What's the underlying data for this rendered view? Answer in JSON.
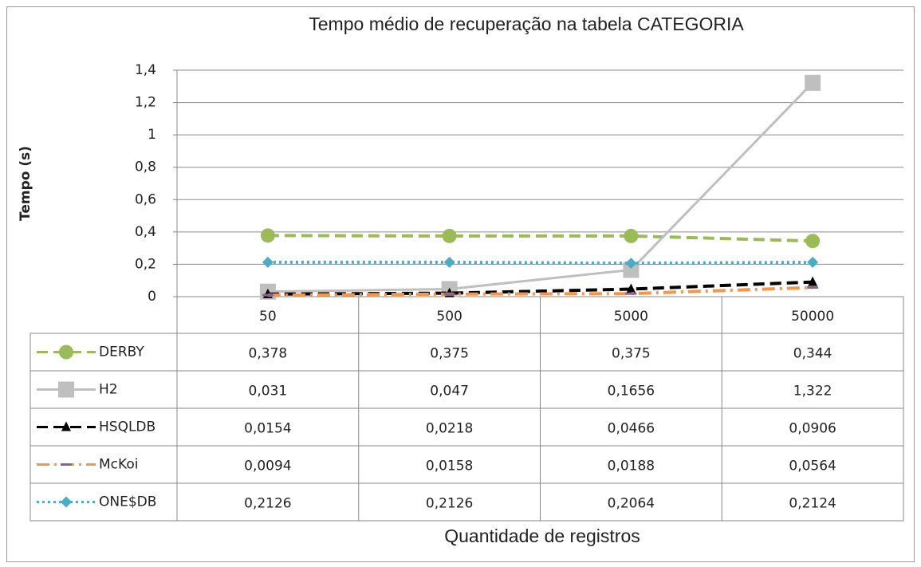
{
  "chart_data": {
    "type": "line",
    "title": "Tempo médio de recuperação na tabela CATEGORIA",
    "ylabel": "Tempo (s)",
    "xlabel": "Quantidade de registros",
    "categories": [
      "50",
      "500",
      "5000",
      "50000"
    ],
    "ylim": [
      0,
      1.4
    ],
    "yticks": [
      0,
      {
        "value": 0.2,
        "label": "0,2"
      },
      {
        "value": 0.4,
        "label": "0,4"
      },
      {
        "value": 0.6,
        "label": "0,6"
      },
      {
        "value": 0.8,
        "label": "0,8"
      },
      1,
      {
        "value": 1.2,
        "label": "1,2"
      },
      {
        "value": 1.4,
        "label": "1,4"
      }
    ],
    "grid": true,
    "series": [
      {
        "name": "DERBY",
        "color": "#9bbb59",
        "line_style": "dashed",
        "marker": "circle",
        "values": [
          0.378,
          0.375,
          0.375,
          0.344
        ],
        "value_labels": [
          "0,378",
          "0,375",
          "0,375",
          "0,344"
        ]
      },
      {
        "name": "H2",
        "color": "#bfbfbf",
        "line_style": "solid",
        "marker": "square",
        "values": [
          0.031,
          0.047,
          0.1656,
          1.322
        ],
        "value_labels": [
          "0,031",
          "0,047",
          "0,1656",
          "1,322"
        ]
      },
      {
        "name": "HSQLDB",
        "color": "#000000",
        "line_style": "dashed",
        "marker": "triangle",
        "values": [
          0.0154,
          0.0218,
          0.0466,
          0.0906
        ],
        "value_labels": [
          "0,0154",
          "0,0218",
          "0,0466",
          "0,0906"
        ]
      },
      {
        "name": "McKoi",
        "color": "#f79646",
        "line_style": "dashdot",
        "marker": "dash",
        "marker_color": "#8064a2",
        "values": [
          0.0094,
          0.0158,
          0.0188,
          0.0564
        ],
        "value_labels": [
          "0,0094",
          "0,0158",
          "0,0188",
          "0,0564"
        ]
      },
      {
        "name": "ONE$DB",
        "color": "#4bacc6",
        "line_style": "dotted",
        "marker": "diamond",
        "values": [
          0.2126,
          0.2126,
          0.2064,
          0.2124
        ],
        "value_labels": [
          "0,2126",
          "0,2126",
          "0,2064",
          "0,2124"
        ]
      }
    ]
  }
}
